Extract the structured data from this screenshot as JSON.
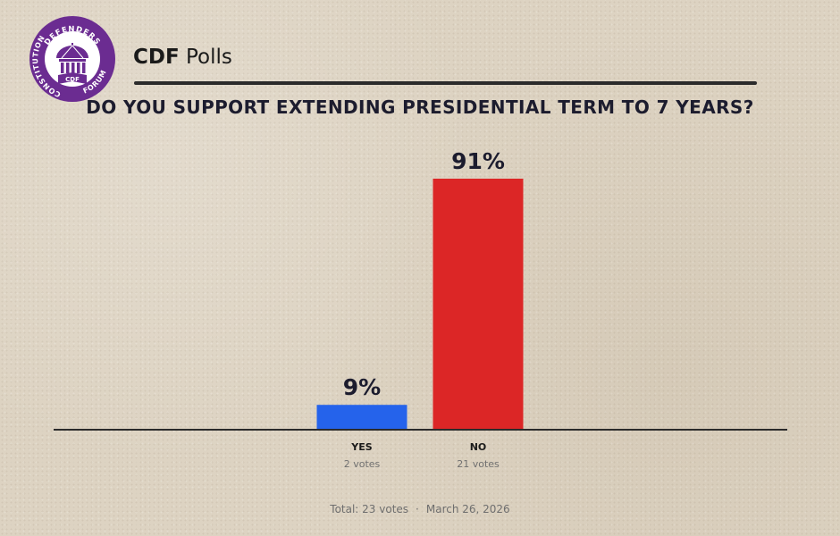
{
  "header": {
    "logo": {
      "arc_top": "DEFENDERS",
      "arc_left": "CONSTITUTION",
      "arc_bottom": "FORUM",
      "monogram": "CDF",
      "ring_color": "#6b2c91"
    },
    "brand_bold": "CDF",
    "brand_rest": " Polls"
  },
  "chart_data": {
    "type": "bar",
    "title": "DO YOU SUPPORT EXTENDING PRESIDENTIAL TERM TO 7 YEARS?",
    "categories": [
      "YES",
      "NO"
    ],
    "values": [
      9,
      91
    ],
    "value_labels": [
      "9%",
      "91%"
    ],
    "votes": [
      2,
      21
    ],
    "vote_labels": [
      "2 votes",
      "21 votes"
    ],
    "colors": [
      "#2563eb",
      "#dc2626"
    ],
    "ylim": [
      0,
      91
    ],
    "xlabel": "",
    "ylabel": "",
    "grid": false
  },
  "footer": {
    "total": "Total: 23 votes",
    "separator": "·",
    "date": "March 26, 2026"
  }
}
